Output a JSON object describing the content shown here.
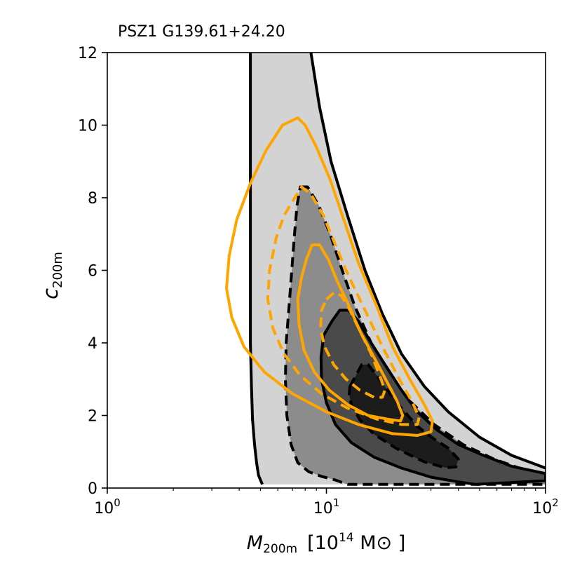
{
  "chart_data": {
    "type": "contour",
    "title": "PSZ1 G139.61+24.20",
    "xlabel": {
      "base": "M",
      "sub": "200m",
      "unit_open": "[10",
      "unit_exp": "14",
      "unit_close": " M⊙ ]"
    },
    "ylabel": {
      "base": "c",
      "sub": "200m"
    },
    "x_scale": "log",
    "xlim": [
      1,
      100
    ],
    "ylim": [
      0,
      12
    ],
    "x_ticks": [
      {
        "value": 1,
        "base": "10",
        "exp": "0"
      },
      {
        "value": 10,
        "base": "10",
        "exp": "1"
      },
      {
        "value": 100,
        "base": "10",
        "exp": "2"
      }
    ],
    "y_ticks": [
      0,
      2,
      4,
      6,
      8,
      10,
      12
    ],
    "grid": false,
    "colors": {
      "band_outer": "#d3d3d3",
      "band_mid": "#8c8c8c",
      "band_inner": "#4a4a4a",
      "band_core": "#1c1c1c",
      "line_black": "#000000",
      "line_orange": "#ffa500"
    },
    "series": [
      {
        "level": "outer",
        "fill": "band_outer",
        "stroke": "line_black",
        "dash": "solid",
        "left_edge": [
          [
            5.1,
            0.1
          ],
          [
            4.9,
            0.35
          ],
          [
            4.8,
            0.7
          ],
          [
            4.7,
            1.2
          ],
          [
            4.6,
            1.9
          ],
          [
            4.55,
            2.8
          ],
          [
            4.5,
            4
          ],
          [
            4.5,
            5.5
          ],
          [
            4.5,
            7
          ],
          [
            4.5,
            9
          ],
          [
            4.5,
            10.5
          ],
          [
            4.5,
            12
          ]
        ],
        "right_edge": [
          [
            8.5,
            12
          ],
          [
            9.3,
            10.5
          ],
          [
            10.5,
            9
          ],
          [
            12.5,
            7.5
          ],
          [
            15,
            6
          ],
          [
            18,
            4.8
          ],
          [
            22,
            3.7
          ],
          [
            28,
            2.8
          ],
          [
            36,
            2.1
          ],
          [
            50,
            1.4
          ],
          [
            70,
            0.9
          ],
          [
            100,
            0.55
          ]
        ],
        "bottom_edge": [
          [
            100,
            0.1
          ],
          [
            5.1,
            0.1
          ]
        ]
      },
      {
        "level": "mid",
        "fill": "band_mid",
        "stroke": "line_black",
        "dash": "dashed",
        "path": [
          [
            7.6,
            8.3
          ],
          [
            8.2,
            8.3
          ],
          [
            9.2,
            7.8
          ],
          [
            10.4,
            7
          ],
          [
            11.8,
            6
          ],
          [
            13.5,
            5
          ],
          [
            16,
            4
          ],
          [
            19.5,
            3.1
          ],
          [
            24,
            2.4
          ],
          [
            31,
            1.75
          ],
          [
            42,
            1.2
          ],
          [
            58,
            0.8
          ],
          [
            80,
            0.5
          ],
          [
            100,
            0.38
          ],
          [
            100,
            0.1
          ],
          [
            12.5,
            0.1
          ],
          [
            11,
            0.22
          ],
          [
            9.5,
            0.32
          ],
          [
            8.3,
            0.45
          ],
          [
            7.4,
            0.7
          ],
          [
            6.9,
            1.2
          ],
          [
            6.6,
            2
          ],
          [
            6.5,
            3
          ],
          [
            6.55,
            4
          ],
          [
            6.75,
            5
          ],
          [
            6.95,
            6
          ],
          [
            7.15,
            7
          ],
          [
            7.35,
            7.8
          ]
        ]
      },
      {
        "level": "inner",
        "fill": "band_inner",
        "stroke": "line_black",
        "dash": "solid",
        "path": [
          [
            9.7,
            4.2
          ],
          [
            10.6,
            4.6
          ],
          [
            11.5,
            4.9
          ],
          [
            12.6,
            4.9
          ],
          [
            14,
            4.6
          ],
          [
            16,
            4
          ],
          [
            18.5,
            3.4
          ],
          [
            22,
            2.7
          ],
          [
            26,
            2.1
          ],
          [
            32,
            1.6
          ],
          [
            40,
            1.2
          ],
          [
            52,
            0.9
          ],
          [
            70,
            0.6
          ],
          [
            100,
            0.4
          ],
          [
            100,
            0.2
          ],
          [
            48,
            0.1
          ],
          [
            40,
            0.17
          ],
          [
            30,
            0.3
          ],
          [
            22,
            0.55
          ],
          [
            16.5,
            0.85
          ],
          [
            13,
            1.25
          ],
          [
            11,
            1.75
          ],
          [
            10,
            2.35
          ],
          [
            9.5,
            3
          ],
          [
            9.45,
            3.6
          ]
        ]
      },
      {
        "level": "core",
        "fill": "band_core",
        "stroke": "line_black",
        "dash": "dashed",
        "path": [
          [
            12.8,
            2.8
          ],
          [
            14.5,
            3.4
          ],
          [
            15.5,
            3.4
          ],
          [
            17,
            3.1
          ],
          [
            19,
            2.7
          ],
          [
            22,
            2.2
          ],
          [
            26,
            1.7
          ],
          [
            31,
            1.35
          ],
          [
            36,
            1.1
          ],
          [
            40,
            0.8
          ],
          [
            39,
            0.58
          ],
          [
            35,
            0.56
          ],
          [
            28,
            0.72
          ],
          [
            21,
            1.08
          ],
          [
            16.5,
            1.48
          ],
          [
            14.2,
            1.88
          ],
          [
            13,
            2.3
          ],
          [
            12.7,
            2.58
          ]
        ]
      },
      {
        "level": "orange-outer",
        "fill": "none",
        "stroke": "line_orange",
        "dash": "solid",
        "path": [
          [
            6.3,
            10
          ],
          [
            7.4,
            10.2
          ],
          [
            8,
            10
          ],
          [
            9,
            9.4
          ],
          [
            10.4,
            8.5
          ],
          [
            12,
            7.4
          ],
          [
            14,
            6.2
          ],
          [
            17,
            5
          ],
          [
            20,
            3.9
          ],
          [
            24,
            3
          ],
          [
            28,
            2.3
          ],
          [
            30.5,
            1.85
          ],
          [
            30,
            1.55
          ],
          [
            26,
            1.45
          ],
          [
            20,
            1.5
          ],
          [
            14,
            1.75
          ],
          [
            10,
            2.1
          ],
          [
            7,
            2.6
          ],
          [
            5.2,
            3.2
          ],
          [
            4.2,
            3.9
          ],
          [
            3.7,
            4.7
          ],
          [
            3.5,
            5.5
          ],
          [
            3.6,
            6.4
          ],
          [
            3.9,
            7.4
          ],
          [
            4.5,
            8.4
          ],
          [
            5.3,
            9.3
          ]
        ]
      },
      {
        "level": "orange-mid",
        "fill": "none",
        "stroke": "line_orange",
        "dash": "dashed",
        "path": [
          [
            7,
            7.9
          ],
          [
            7.7,
            8.3
          ],
          [
            8.5,
            8.1
          ],
          [
            9.7,
            7.5
          ],
          [
            11,
            6.7
          ],
          [
            12.5,
            5.9
          ],
          [
            15,
            4.9
          ],
          [
            18,
            3.9
          ],
          [
            21.5,
            3
          ],
          [
            24.5,
            2.4
          ],
          [
            26.5,
            1.95
          ],
          [
            26,
            1.75
          ],
          [
            22,
            1.75
          ],
          [
            17,
            1.9
          ],
          [
            12.5,
            2.2
          ],
          [
            9.5,
            2.6
          ],
          [
            7.6,
            3.1
          ],
          [
            6.4,
            3.7
          ],
          [
            5.7,
            4.4
          ],
          [
            5.4,
            5.2
          ],
          [
            5.5,
            6
          ],
          [
            5.9,
            6.9
          ],
          [
            6.4,
            7.5
          ]
        ]
      },
      {
        "level": "orange-inner",
        "fill": "none",
        "stroke": "line_orange",
        "dash": "solid",
        "path": [
          [
            8.6,
            6.7
          ],
          [
            9.3,
            6.7
          ],
          [
            10.2,
            6.3
          ],
          [
            11.2,
            5.7
          ],
          [
            12.5,
            5.1
          ],
          [
            14.3,
            4.3
          ],
          [
            16.5,
            3.6
          ],
          [
            19,
            2.9
          ],
          [
            21,
            2.4
          ],
          [
            22.3,
            2
          ],
          [
            21.8,
            1.85
          ],
          [
            19,
            1.9
          ],
          [
            15.5,
            2
          ],
          [
            12.5,
            2.3
          ],
          [
            10.3,
            2.7
          ],
          [
            8.8,
            3.2
          ],
          [
            7.9,
            3.8
          ],
          [
            7.5,
            4.5
          ],
          [
            7.4,
            5.2
          ],
          [
            7.7,
            5.8
          ],
          [
            8.1,
            6.3
          ]
        ]
      },
      {
        "level": "orange-core",
        "fill": "none",
        "stroke": "line_orange",
        "dash": "dashed",
        "path": [
          [
            10,
            5.2
          ],
          [
            10.9,
            5.4
          ],
          [
            11.7,
            5.3
          ],
          [
            12.8,
            4.9
          ],
          [
            14.3,
            4.3
          ],
          [
            16,
            3.7
          ],
          [
            17.5,
            3.1
          ],
          [
            18.5,
            2.7
          ],
          [
            18,
            2.5
          ],
          [
            16.5,
            2.5
          ],
          [
            14.2,
            2.7
          ],
          [
            12.3,
            3
          ],
          [
            10.8,
            3.4
          ],
          [
            9.8,
            3.9
          ],
          [
            9.4,
            4.4
          ],
          [
            9.5,
            4.9
          ]
        ]
      }
    ]
  }
}
